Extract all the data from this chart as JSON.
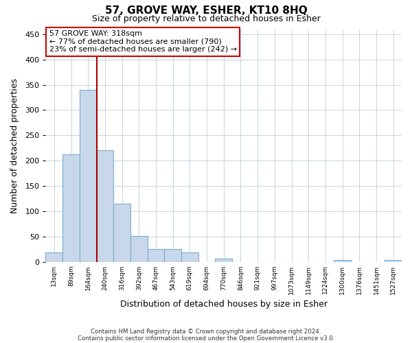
{
  "title": "57, GROVE WAY, ESHER, KT10 8HQ",
  "subtitle": "Size of property relative to detached houses in Esher",
  "xlabel": "Distribution of detached houses by size in Esher",
  "ylabel": "Number of detached properties",
  "bar_labels": [
    "13sqm",
    "89sqm",
    "164sqm",
    "240sqm",
    "316sqm",
    "392sqm",
    "467sqm",
    "543sqm",
    "619sqm",
    "694sqm",
    "770sqm",
    "846sqm",
    "921sqm",
    "997sqm",
    "1073sqm",
    "1149sqm",
    "1224sqm",
    "1300sqm",
    "1376sqm",
    "1451sqm",
    "1527sqm"
  ],
  "bar_values": [
    18,
    213,
    340,
    221,
    115,
    51,
    26,
    25,
    19,
    0,
    7,
    0,
    0,
    0,
    0,
    0,
    0,
    3,
    0,
    0,
    3
  ],
  "bar_color": "#c8d8ea",
  "bar_edge_color": "#7aaad0",
  "vline_x_idx": 3,
  "vline_color": "#aa0000",
  "annotation_title": "57 GROVE WAY: 318sqm",
  "annotation_line1": "← 77% of detached houses are smaller (790)",
  "annotation_line2": "23% of semi-detached houses are larger (242) →",
  "annotation_box_color": "#cc0000",
  "ylim": [
    0,
    460
  ],
  "yticks": [
    0,
    50,
    100,
    150,
    200,
    250,
    300,
    350,
    400,
    450
  ],
  "footnote1": "Contains HM Land Registry data © Crown copyright and database right 2024.",
  "footnote2": "Contains public sector information licensed under the Open Government Licence v3.0.",
  "bg_color": "#ffffff",
  "grid_color": "#c8d4dc"
}
